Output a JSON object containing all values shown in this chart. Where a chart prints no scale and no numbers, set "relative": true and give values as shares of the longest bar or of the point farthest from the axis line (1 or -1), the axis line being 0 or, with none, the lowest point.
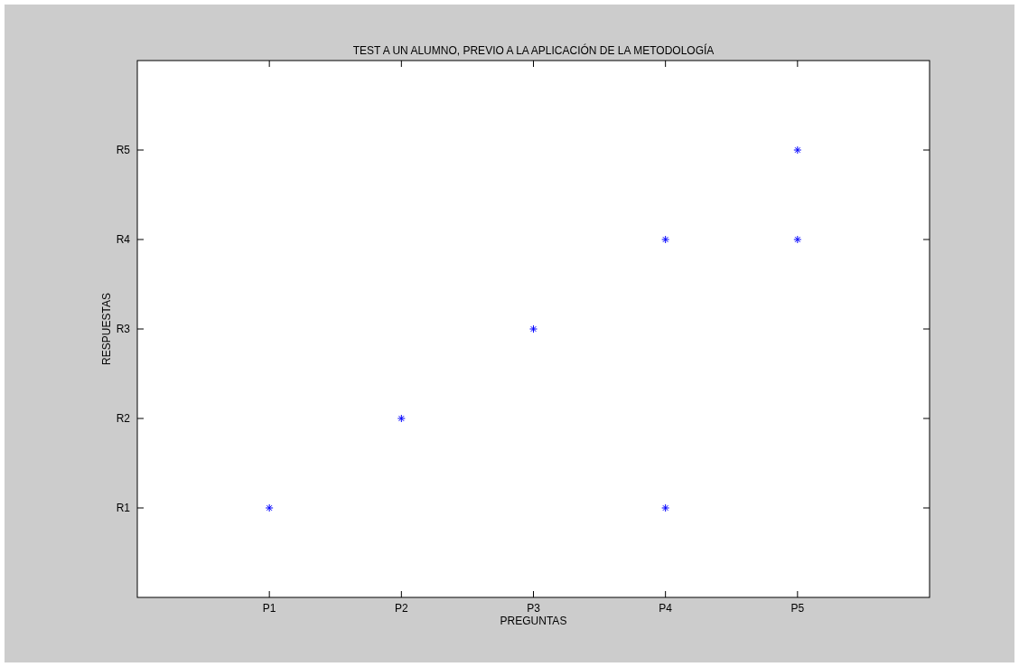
{
  "chart_data": {
    "type": "scatter",
    "title": "TEST A UN ALUMNO, PREVIO A LA APLICACIÓN DE LA METODOLOGÍA",
    "xlabel": "PREGUNTAS",
    "ylabel": "RESPUESTAS",
    "categories": [
      "P1",
      "P2",
      "P3",
      "P4",
      "P5"
    ],
    "y_categories": [
      "R5",
      "R4",
      "R3",
      "R2",
      "R1"
    ],
    "relative": true,
    "series": [
      {
        "color": "#0000ff",
        "x": [
          "P1",
          "P2",
          "P3",
          "P4",
          "P4",
          "P5",
          "P5"
        ],
        "values": [
          0.2,
          0.4,
          0.6,
          0.8,
          0.2,
          1,
          0.8
        ]
      }
    ],
    "grid": false,
    "marker": "cross"
  }
}
